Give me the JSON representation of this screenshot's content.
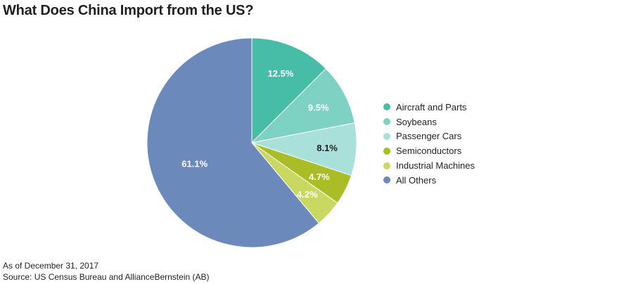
{
  "title": "What Does China Import from the US?",
  "footer": {
    "date_note": "As of December 31, 2017",
    "source": "Source: US Census Bureau and AllianceBernstein (AB)"
  },
  "chart_data": {
    "type": "pie",
    "title": "What Does China Import from the US?",
    "labels": [
      "Aircraft and Parts",
      "Soybeans",
      "Passenger Cars",
      "Semiconductors",
      "Industrial Machines",
      "All Others"
    ],
    "values": [
      12.5,
      9.5,
      8.1,
      4.7,
      4.2,
      61.1
    ],
    "value_labels": [
      "12.5%",
      "9.5%",
      "8.1%",
      "4.7%",
      "4.2%",
      "61.1%"
    ],
    "colors": [
      "#47bca6",
      "#7dd2c3",
      "#a9e0da",
      "#aabd27",
      "#c8d860",
      "#6b89ba"
    ],
    "label_colors": [
      "#ffffff",
      "#ffffff",
      "#231f20",
      "#ffffff",
      "#ffffff",
      "#ffffff"
    ],
    "start": "12 o'clock",
    "direction": "clockwise",
    "legend_position": "right"
  }
}
